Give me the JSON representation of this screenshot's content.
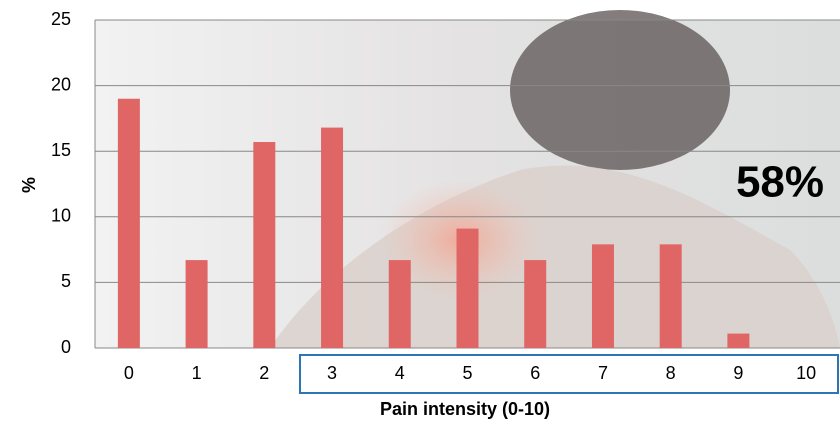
{
  "chart_data": {
    "type": "bar",
    "categories": [
      "0",
      "1",
      "2",
      "3",
      "4",
      "5",
      "6",
      "7",
      "8",
      "9",
      "10"
    ],
    "values": [
      19.0,
      6.7,
      15.7,
      16.8,
      6.7,
      9.1,
      6.7,
      7.9,
      7.9,
      1.1,
      0
    ],
    "color": "#e06666",
    "ylim": [
      0,
      25
    ],
    "yticks": [
      0,
      5,
      10,
      15,
      20,
      25
    ],
    "grid": true,
    "ylabel": "%",
    "xlabel": "Pain intensity (0-10)",
    "annotation": "58%"
  }
}
